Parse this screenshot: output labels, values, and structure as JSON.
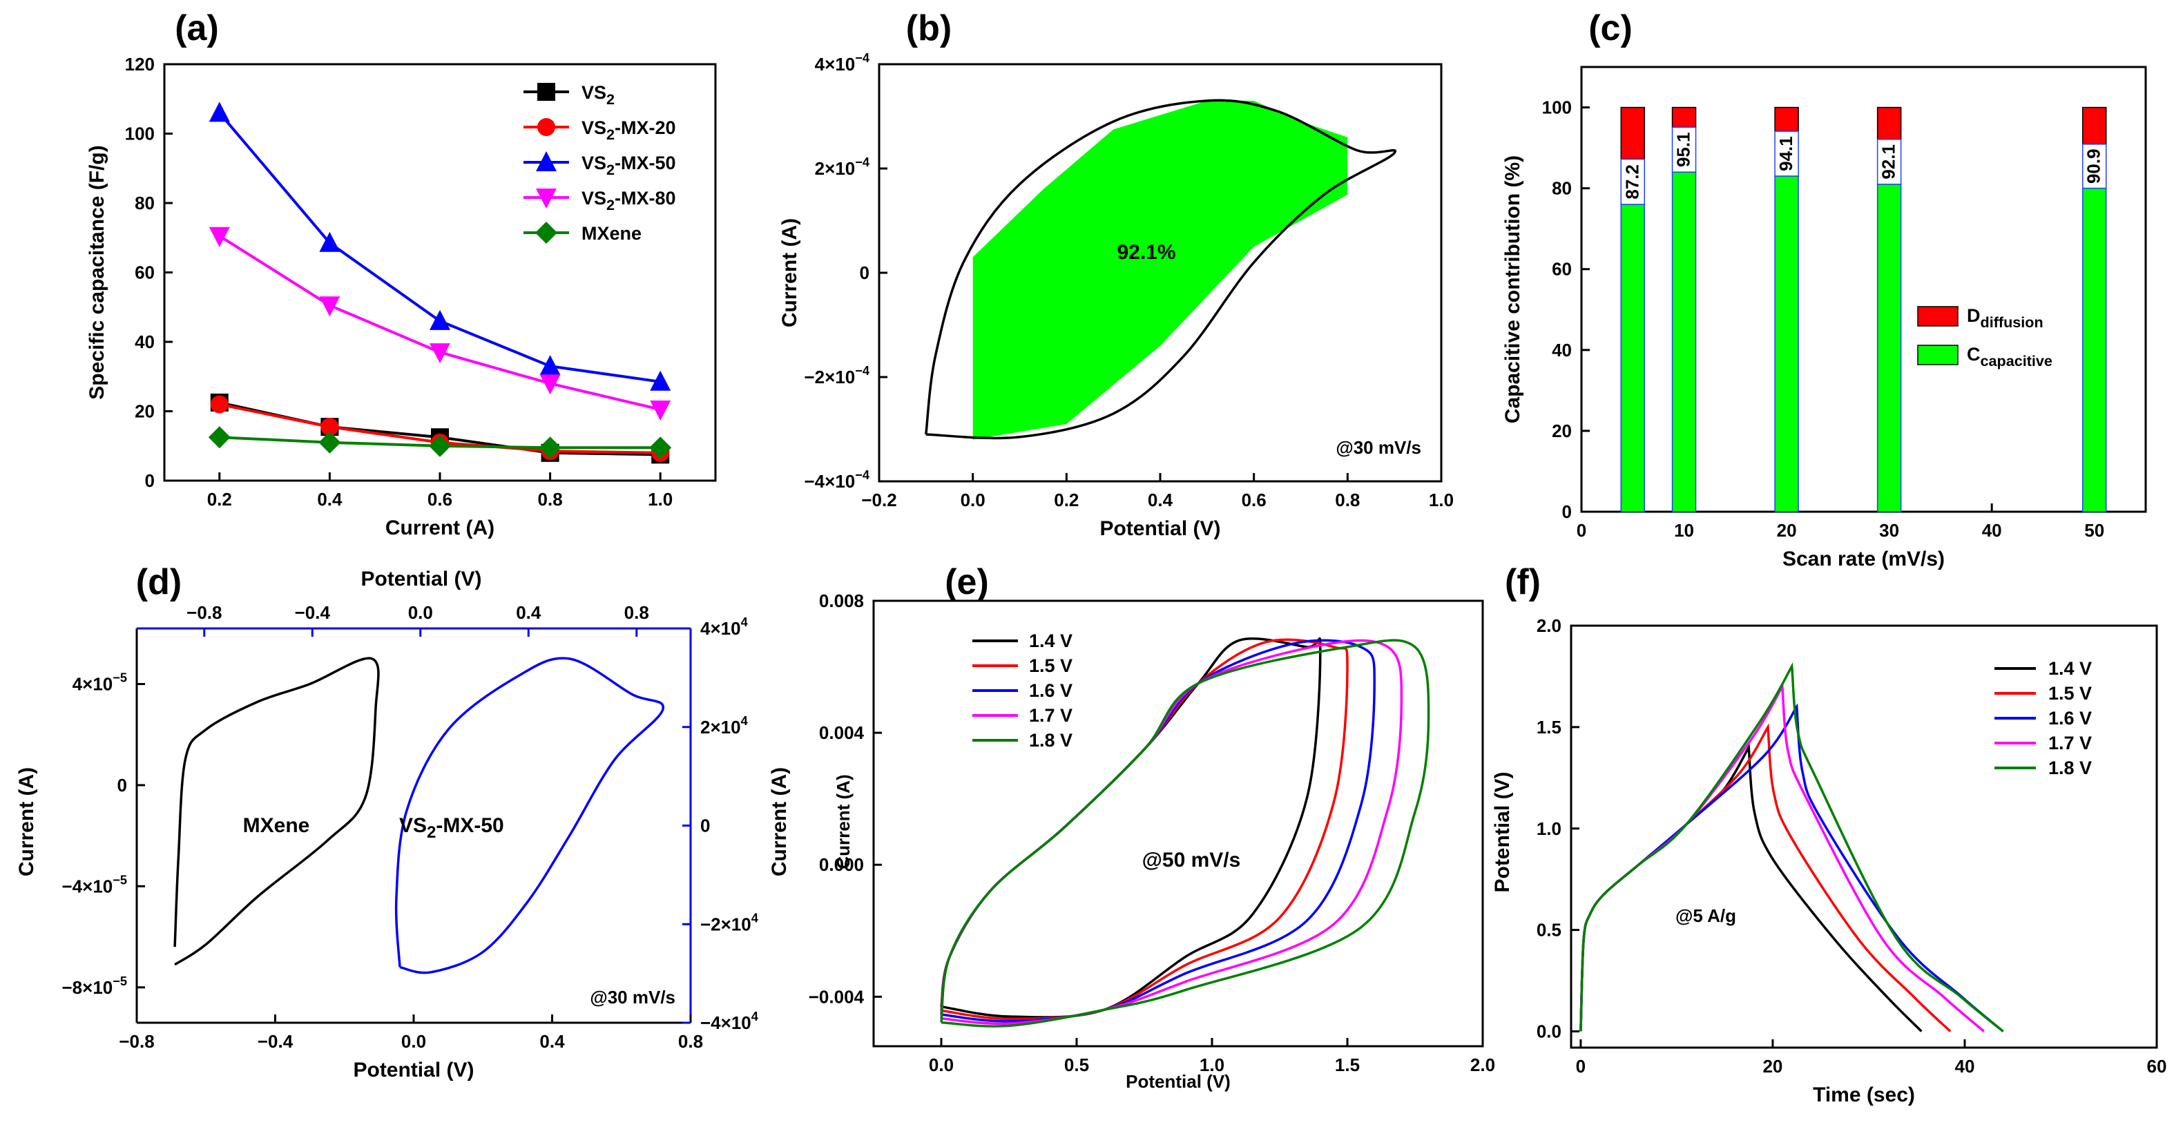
{
  "chart_data": [
    {
      "panel": "(a)",
      "type": "line",
      "xlabel": "Current (A)",
      "ylabel": "Specific capacitance (F/g)",
      "xlim": [
        0.1,
        1.1
      ],
      "ylim": [
        0,
        120
      ],
      "xticks": [
        "0.2",
        "0.4",
        "0.6",
        "0.8",
        "1.0"
      ],
      "yticks": [
        "0",
        "20",
        "40",
        "60",
        "80",
        "100",
        "120"
      ],
      "x": [
        0.2,
        0.4,
        0.6,
        0.8,
        1.0
      ],
      "series": [
        {
          "name": "VS",
          "sub": "2",
          "suffix": "",
          "color": "#000000",
          "marker": "square",
          "values": [
            22.5,
            15.5,
            12.5,
            8,
            7.5
          ]
        },
        {
          "name": "VS",
          "sub": "2",
          "suffix": "-MX-20",
          "color": "#ff0000",
          "marker": "circle",
          "values": [
            22,
            15.5,
            11,
            8.5,
            8
          ]
        },
        {
          "name": "VS",
          "sub": "2",
          "suffix": "-MX-50",
          "color": "#0000ff",
          "marker": "triangle-up",
          "values": [
            106,
            68.5,
            46,
            33,
            28.5
          ]
        },
        {
          "name": "VS",
          "sub": "2",
          "suffix": "-MX-80",
          "color": "#ff00ff",
          "marker": "triangle-down",
          "values": [
            70.5,
            50.5,
            37,
            28,
            20.5
          ]
        },
        {
          "name": "MXene",
          "sub": "",
          "suffix": "",
          "color": "#008000",
          "marker": "diamond",
          "values": [
            12.5,
            11,
            10,
            9.5,
            9.5
          ]
        }
      ]
    },
    {
      "panel": "(b)",
      "type": "area",
      "xlabel": "Potential (V)",
      "ylabel": "Current (A)",
      "xlim": [
        -0.2,
        1.0
      ],
      "ylim": [
        -0.0004,
        0.0004
      ],
      "xticks": [
        "−0.2",
        "0.0",
        "0.2",
        "0.4",
        "0.6",
        "0.8",
        "1.0"
      ],
      "yticks": [
        "−4×10",
        "−2×10",
        "0",
        "2×10",
        "4×10"
      ],
      "ytick_exp": [
        "−4",
        "−4",
        "",
        "−4",
        "−4"
      ],
      "annotation": "92.1%",
      "scan_note": "@30 mV/s",
      "capacitive_fill": "#00ff00"
    },
    {
      "panel": "(c)",
      "type": "bar",
      "xlabel": "Scan rate (mV/s)",
      "ylabel": "Capacitive contribution (%)",
      "xlim": [
        0,
        55
      ],
      "ylim": [
        0,
        110
      ],
      "xticks": [
        "0",
        "10",
        "20",
        "30",
        "40",
        "50"
      ],
      "yticks": [
        "0",
        "20",
        "40",
        "60",
        "80",
        "100"
      ],
      "x": [
        5,
        10,
        20,
        30,
        50
      ],
      "capacitive": [
        87.2,
        95.1,
        94.1,
        92.1,
        90.9
      ],
      "labels": [
        "87.2",
        "95.1",
        "94.1",
        "92.1",
        "90.9"
      ],
      "legend": [
        {
          "main": "D",
          "sub": "diffusion",
          "color": "#ff0000"
        },
        {
          "main": "C",
          "sub": "capacitive",
          "color": "#00ff00"
        }
      ]
    },
    {
      "panel": "(d)",
      "type": "line",
      "xlabel": "Potential (V)",
      "xlabel_top": "Potential (V)",
      "ylabel": "Current (A)",
      "ylabel_right": "Current (A)",
      "xticks": [
        "−0.8",
        "−0.4",
        "0.0",
        "0.4",
        "0.8"
      ],
      "xticks_top": [
        "−0.8",
        "−0.4",
        "0.0",
        "0.4",
        "0.8"
      ],
      "yticks": [
        "−8×10",
        "−4×10",
        "0",
        "4×10"
      ],
      "ytick_exp": [
        "−5",
        "−5",
        "",
        "−5"
      ],
      "yticks_right": [
        "−4×10",
        "−2×10",
        "0",
        "2×10",
        "4×10"
      ],
      "ytick_right_exp": [
        "4",
        "4",
        "",
        "4",
        "4"
      ],
      "label_mxene": "MXene",
      "label_vs2": "VS",
      "label_vs2_sub": "2",
      "label_vs2_suffix": "-MX-50",
      "scan_note": "@30 mV/s"
    },
    {
      "panel": "(e)",
      "type": "line",
      "xlabel": "Potential (V)",
      "ylabel": "Current (A)",
      "xlim": [
        -0.25,
        2.0
      ],
      "ylim": [
        -0.0055,
        0.008
      ],
      "xticks": [
        "0.0",
        "0.5",
        "1.0",
        "1.5",
        "2.0"
      ],
      "yticks": [
        "−0.004",
        "0.000",
        "0.004",
        "0.008"
      ],
      "scan_note": "@50 mV/s",
      "series": [
        {
          "name": "1.4 V",
          "color": "#000000",
          "vmax": 1.4
        },
        {
          "name": "1.5 V",
          "color": "#ff0000",
          "vmax": 1.5
        },
        {
          "name": "1.6 V",
          "color": "#0000ff",
          "vmax": 1.6
        },
        {
          "name": "1.7 V",
          "color": "#ff00ff",
          "vmax": 1.7
        },
        {
          "name": "1.8 V",
          "color": "#008000",
          "vmax": 1.8
        }
      ]
    },
    {
      "panel": "(f)",
      "type": "line",
      "xlabel": "Time (sec)",
      "ylabel": "Potential (V)",
      "xlim": [
        -1,
        60
      ],
      "ylim": [
        -0.08,
        2.0
      ],
      "xticks": [
        "0",
        "20",
        "40",
        "60"
      ],
      "yticks": [
        "0.0",
        "0.5",
        "1.0",
        "1.5",
        "2.0"
      ],
      "note": "@5 A/g",
      "series": [
        {
          "name": "1.4 V",
          "color": "#000000",
          "vmax": 1.4,
          "t_peak": 17.5,
          "t_end": 35.5
        },
        {
          "name": "1.5 V",
          "color": "#ff0000",
          "vmax": 1.5,
          "t_peak": 19.5,
          "t_end": 38.5
        },
        {
          "name": "1.6 V",
          "color": "#0000ff",
          "vmax": 1.6,
          "t_peak": 22.5,
          "t_end": 44
        },
        {
          "name": "1.7 V",
          "color": "#ff00ff",
          "vmax": 1.7,
          "t_peak": 21,
          "t_end": 42
        },
        {
          "name": "1.8 V",
          "color": "#008000",
          "vmax": 1.8,
          "t_peak": 22,
          "t_end": 44
        }
      ]
    }
  ]
}
